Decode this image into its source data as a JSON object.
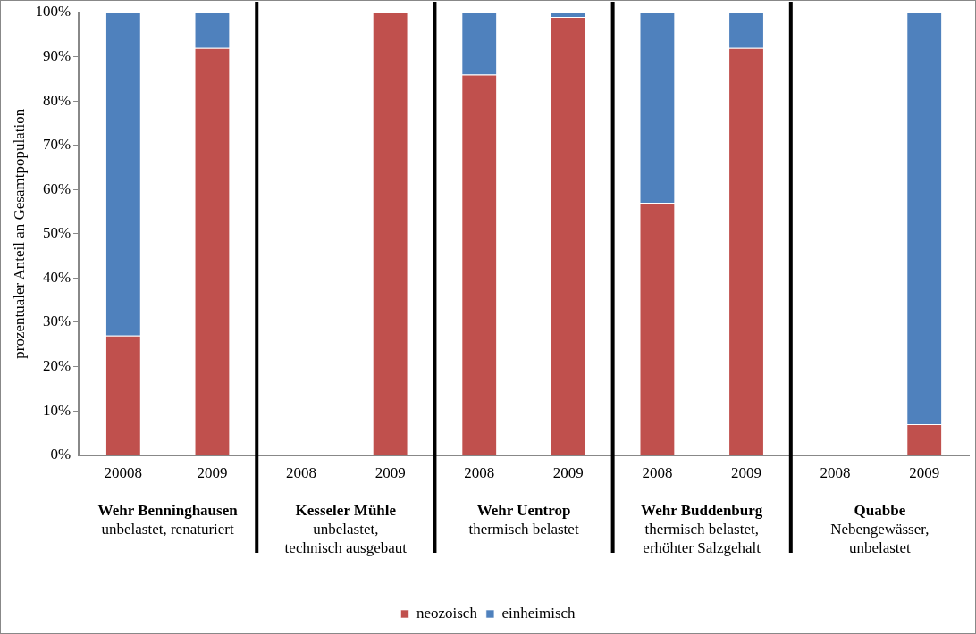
{
  "chart_data": {
    "type": "bar",
    "stacked": true,
    "ylabel": "prozentualer Anteil an Gesamtpopulation",
    "categories": [
      "20008",
      "2009",
      "2008",
      "2009",
      "2008",
      "2009",
      "2008",
      "2009",
      "2008",
      "2009"
    ],
    "series": [
      {
        "name": "neozoisch",
        "color": "#c0504d",
        "values": [
          27,
          92,
          null,
          100,
          86,
          99,
          57,
          92,
          null,
          7
        ]
      },
      {
        "name": "einheimisch",
        "color": "#4f81bd",
        "values": [
          73,
          8,
          null,
          0,
          14,
          1,
          43,
          8,
          null,
          93
        ]
      }
    ],
    "ylim": [
      0,
      100
    ],
    "yticks": [
      {
        "value": 0,
        "label": "0%"
      },
      {
        "value": 10,
        "label": "10%"
      },
      {
        "value": 20,
        "label": "20%"
      },
      {
        "value": 30,
        "label": "30%"
      },
      {
        "value": 40,
        "label": "40%"
      },
      {
        "value": 50,
        "label": "50%"
      },
      {
        "value": 60,
        "label": "60%"
      },
      {
        "value": 70,
        "label": "70%"
      },
      {
        "value": 80,
        "label": "80%"
      },
      {
        "value": 90,
        "label": "90%"
      },
      {
        "value": 100,
        "label": "100%"
      }
    ],
    "grid": false,
    "legend": "bottom",
    "annotations": [
      "Wehr Benninghausen",
      "unbelastet, renaturiert",
      "Kesseler Mühle",
      "unbelastet,\ntechnisch ausgebaut",
      "Wehr Uentrop",
      "thermisch belastet",
      "Wehr Buddenburg",
      "thermisch belastet,\nerhöhter Salzgehalt",
      "Quabbe",
      "Nebengewässer,\nunbelastet"
    ]
  }
}
